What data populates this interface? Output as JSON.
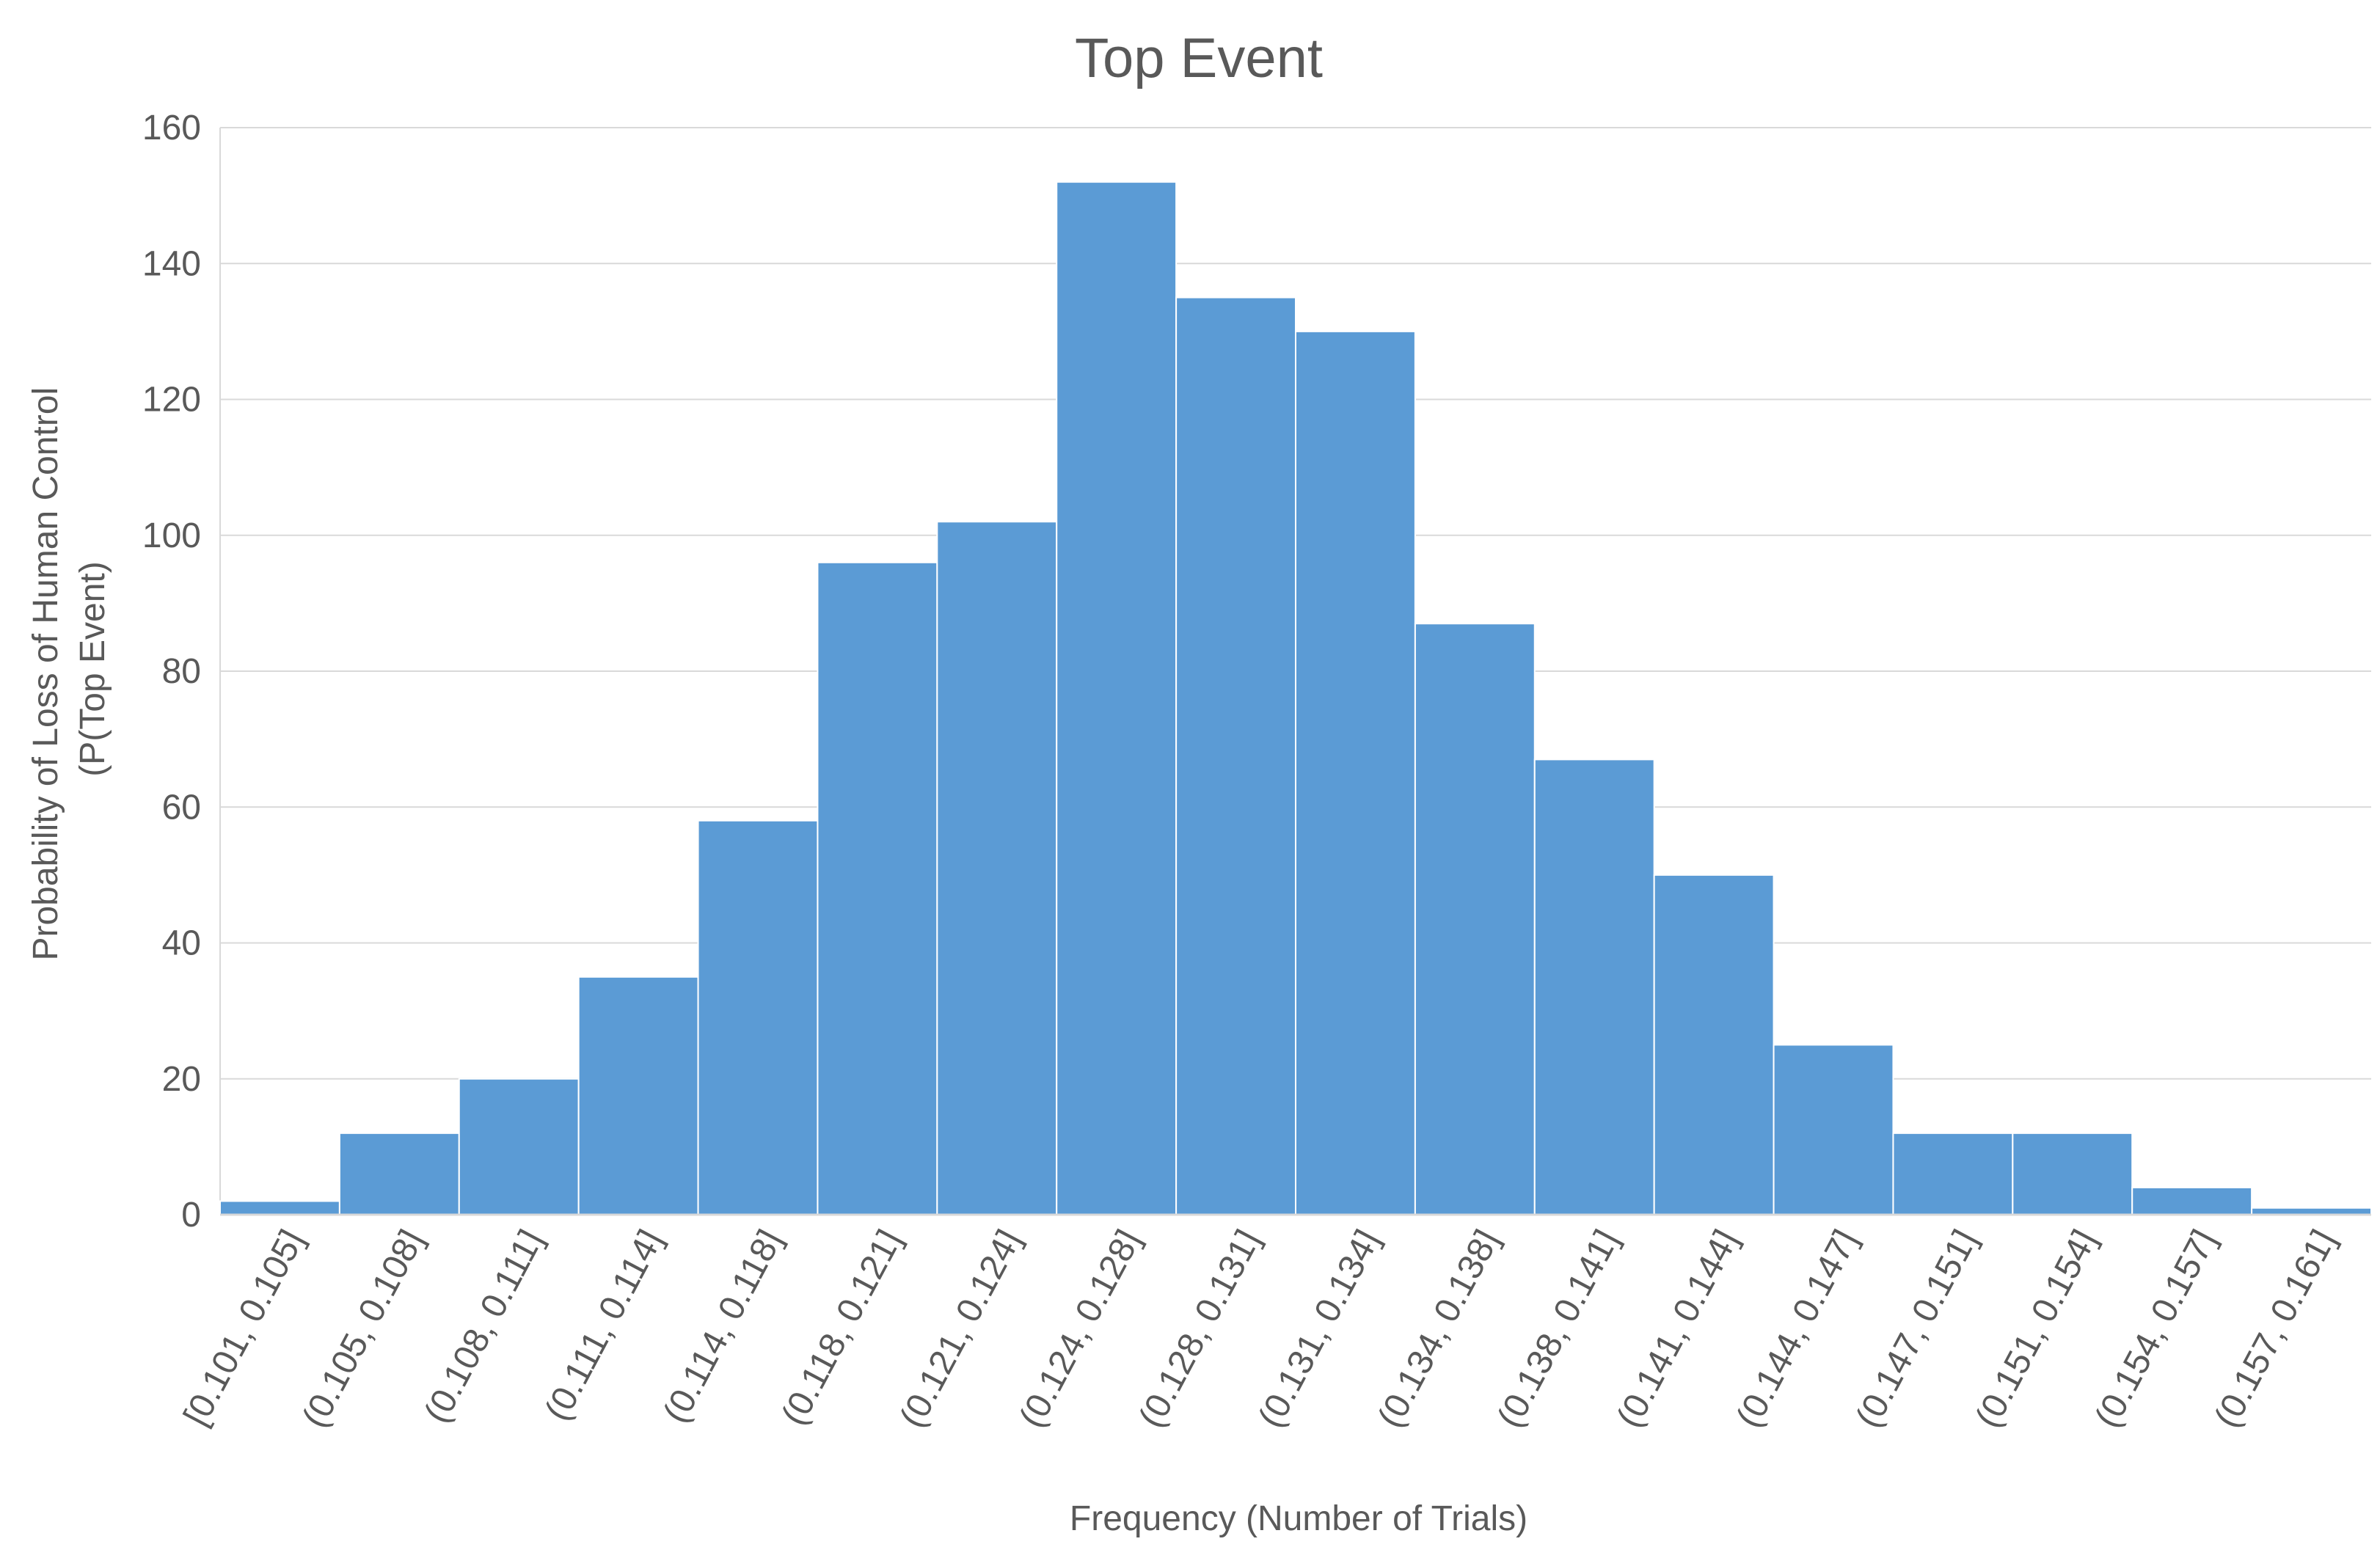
{
  "chart_data": {
    "type": "bar",
    "title": "Top Event",
    "xlabel": "Frequency (Number of Trials)",
    "ylabel_lines": [
      "Probability of Loss of Human Control",
      "(P(Top Event)"
    ],
    "categories": [
      "[0.101, 0.105]",
      "(0.105, 0.108]",
      "(0.108, 0.111]",
      "(0.111, 0.114]",
      "(0.114, 0.118]",
      "(0.118, 0.121]",
      "(0.121, 0.124]",
      "(0.124, 0.128]",
      "(0.128, 0.131]",
      "(0.131, 0.134]",
      "(0.134, 0.138]",
      "(0.138, 0.141]",
      "(0.141, 0.144]",
      "(0.144, 0.147]",
      "(0.147, 0.151]",
      "(0.151, 0.154]",
      "(0.154, 0.157]",
      "(0.157, 0.161]"
    ],
    "values": [
      2,
      12,
      20,
      35,
      58,
      96,
      102,
      152,
      135,
      130,
      87,
      67,
      50,
      25,
      12,
      12,
      4,
      1
    ],
    "ylim": [
      0,
      160
    ],
    "yticks": [
      0,
      20,
      40,
      60,
      80,
      100,
      120,
      140,
      160
    ],
    "grid": true,
    "legend": "none",
    "bar_color": "#5b9bd5",
    "bar_edge_color": "#ffffff",
    "grid_color": "#d9d9d9",
    "text_color": "#595959"
  }
}
